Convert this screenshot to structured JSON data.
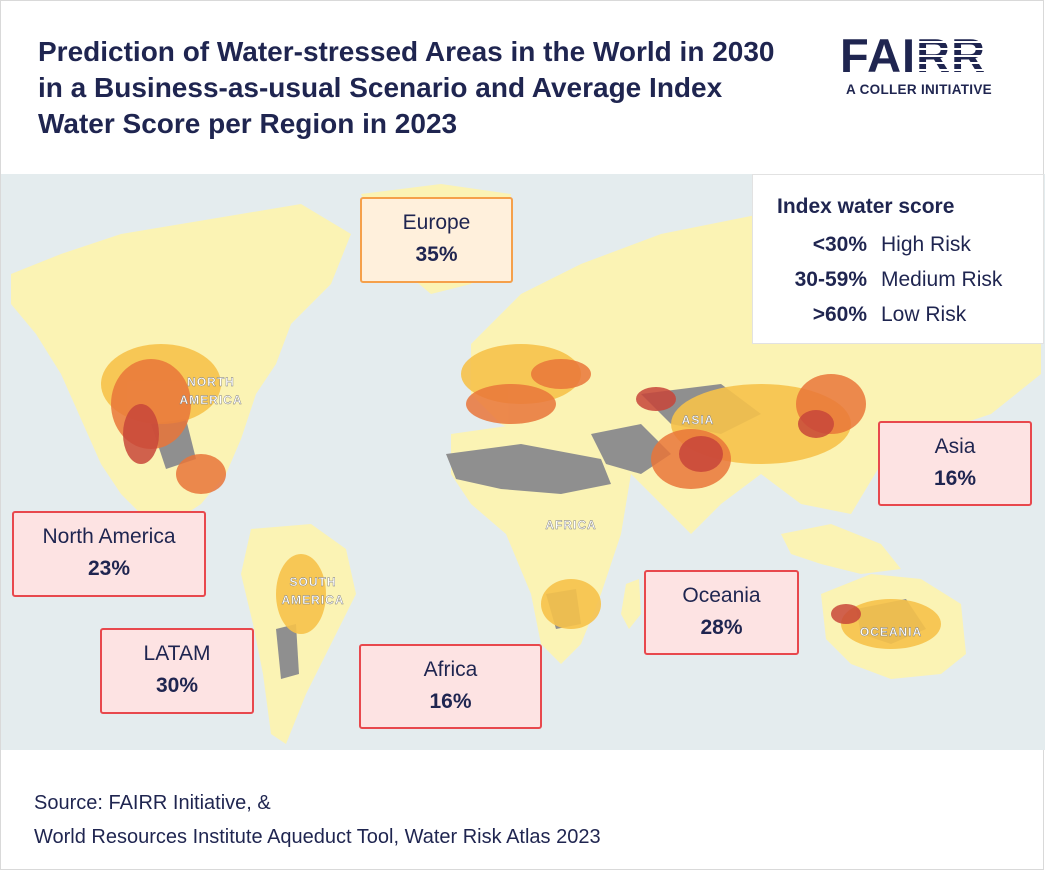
{
  "title": "Prediction of Water-stressed Areas in the World in 2030 in a Business-as-usual Scenario and Average Index Water Score per Region in 2023",
  "logo": {
    "main_a": "FAI",
    "main_b": "RR",
    "sub": "A COLLER INITIATIVE"
  },
  "map": {
    "labels": {
      "north_america": [
        "NORTH",
        "AMERICA"
      ],
      "south_america": [
        "SOUTH",
        "AMERICA"
      ],
      "africa": "AFRICA",
      "asia": "ASIA",
      "oceania": "OCEANIA"
    },
    "colors": {
      "water": "#e4ecee",
      "low_stress": "#fbf3b4",
      "medium_stress": "#f6c24a",
      "high_stress": "#e9763a",
      "extreme_stress": "#c8463a",
      "arid": "#8f8f8f"
    }
  },
  "legend": {
    "title": "Index water score",
    "rows": [
      {
        "range": "<30%",
        "risk": "High Risk"
      },
      {
        "range": "30-59%",
        "risk": "Medium Risk"
      },
      {
        "range": ">60%",
        "risk": "Low Risk"
      }
    ]
  },
  "regions": {
    "europe": {
      "name": "Europe",
      "score": "35%"
    },
    "asia": {
      "name": "Asia",
      "score": "16%"
    },
    "north_america": {
      "name": "North America",
      "score": "23%"
    },
    "latam": {
      "name": "LATAM",
      "score": "30%"
    },
    "africa": {
      "name": "Africa",
      "score": "16%"
    },
    "oceania": {
      "name": "Oceania",
      "score": "28%"
    }
  },
  "source": {
    "line1": "Source: FAIRR Initiative, &",
    "line2": "World Resources Institute Aqueduct Tool, Water Risk Atlas 2023"
  }
}
